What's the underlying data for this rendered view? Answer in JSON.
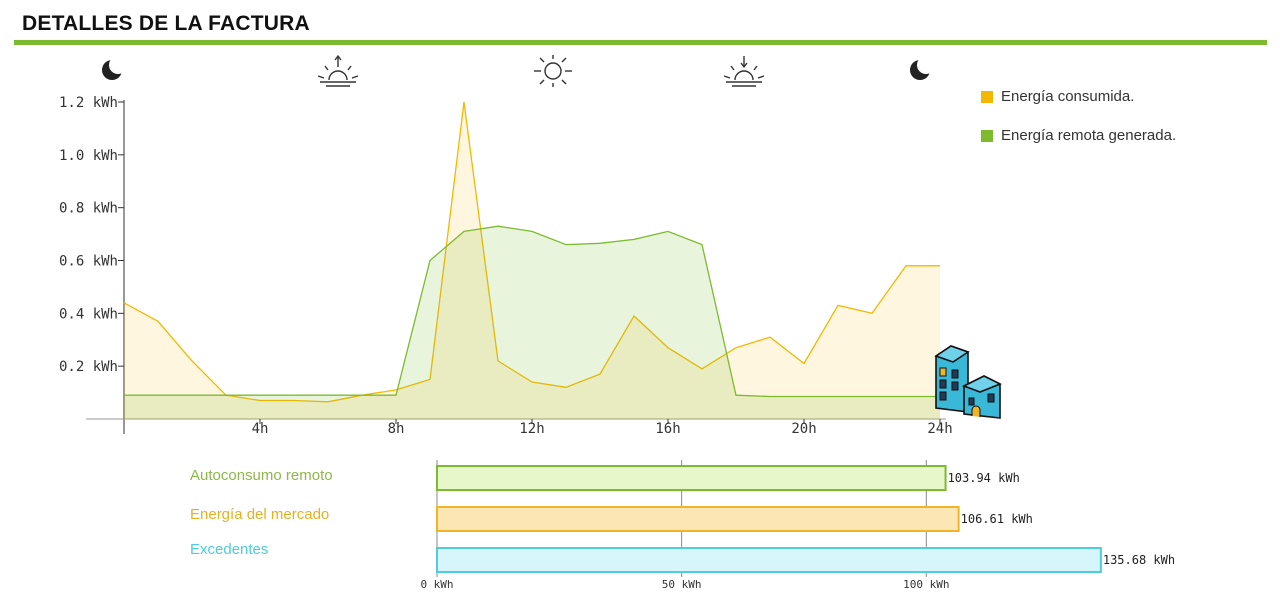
{
  "header": {
    "title": "DETALLES DE LA FACTURA"
  },
  "legend": [
    {
      "label": "Energía consumida.",
      "color": "#f5b800"
    },
    {
      "label": "Energía remota generada.",
      "color": "#7cbb2e"
    }
  ],
  "time_icons": [
    "moon-icon",
    "sunrise-icon",
    "sun-icon",
    "sunset-icon",
    "moon-icon"
  ],
  "chart_data": [
    {
      "type": "area",
      "title": "",
      "xlabel": "",
      "ylabel": "",
      "xlim": [
        0,
        24
      ],
      "ylim": [
        0,
        1.2
      ],
      "x_ticks": [
        4,
        8,
        12,
        16,
        20,
        24
      ],
      "x_tick_labels": [
        "4h",
        "8h",
        "12h",
        "16h",
        "20h",
        "24h"
      ],
      "y_ticks": [
        0.2,
        0.4,
        0.6,
        0.8,
        1.0,
        1.2
      ],
      "y_tick_labels": [
        "0.2 kWh",
        "0.4 kWh",
        "0.6 kWh",
        "0.8 kWh",
        "1.0 kWh",
        "1.2 kWh"
      ],
      "legend_position": "top-right",
      "series": [
        {
          "name": "Energía consumida.",
          "color": "#f5b800",
          "x": [
            0,
            1,
            2,
            3,
            4,
            5,
            6,
            7,
            8,
            9,
            10,
            11,
            12,
            13,
            14,
            15,
            16,
            17,
            18,
            19,
            20,
            21,
            22,
            23,
            24
          ],
          "y": [
            0.44,
            0.37,
            0.22,
            0.09,
            0.07,
            0.07,
            0.065,
            0.09,
            0.11,
            0.15,
            1.2,
            0.22,
            0.14,
            0.12,
            0.17,
            0.39,
            0.27,
            0.19,
            0.27,
            0.31,
            0.21,
            0.43,
            0.4,
            0.58,
            0.58
          ]
        },
        {
          "name": "Energía remota generada.",
          "color": "#7cbb2e",
          "x": [
            0,
            6,
            7,
            8,
            9,
            10,
            11,
            12,
            13,
            14,
            15,
            16,
            17,
            18,
            19,
            20,
            21,
            22,
            23,
            24
          ],
          "y": [
            0.09,
            0.09,
            0.09,
            0.09,
            0.6,
            0.71,
            0.73,
            0.71,
            0.66,
            0.665,
            0.68,
            0.71,
            0.66,
            0.09,
            0.085,
            0.085,
            0.085,
            0.085,
            0.085,
            0.085
          ]
        }
      ]
    },
    {
      "type": "bar",
      "orientation": "horizontal",
      "categories": [
        "Autoconsumo remoto",
        "Energía del mercado",
        "Excedentes"
      ],
      "values": [
        103.94,
        106.61,
        135.68
      ],
      "value_labels": [
        "103.94 kWh",
        "106.61 kWh",
        "135.68 kWh"
      ],
      "colors": [
        "#7cbb2e",
        "#f0b429",
        "#4ecce0"
      ],
      "xlim": [
        0,
        140
      ],
      "x_ticks": [
        0,
        50,
        100
      ],
      "x_tick_labels": [
        "0 kWh",
        "50 kWh",
        "100 kWh"
      ]
    }
  ]
}
